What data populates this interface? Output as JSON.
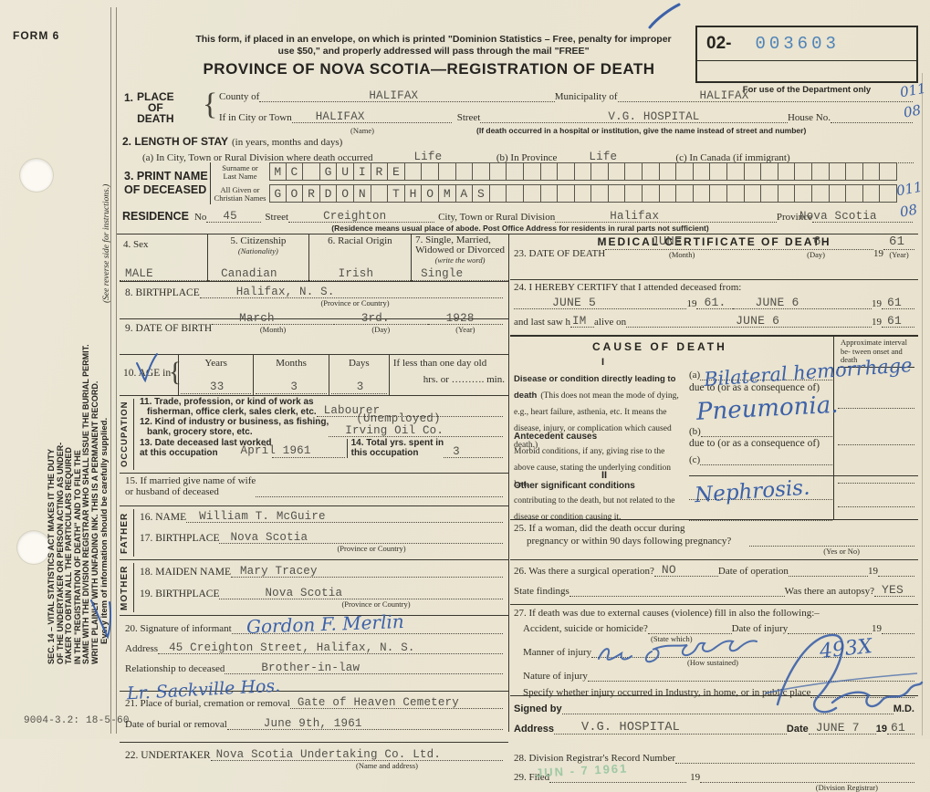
{
  "margin": {
    "form_no": "FORM 6",
    "notice_lines": [
      "SEC. 14 – VITAL STATISTICS ACT MAKES IT THE DUTY",
      "OF THE UNDERTAKER OR PERSON ACTING AS UNDER-",
      "TAKER TO OBTAIN ALL THE PARTICULARS REQUIRED",
      "IN THE \"REGISTRATION OF DEATH\" AND TO FILE THE",
      "SAME WITH THE DIVISION REGISTRAR WHO SHALL ISSUE THE BURIAL PERMIT.",
      "WRITE PLAINLY WITH UNFADING INK. THIS IS A PERMANENT RECORD."
    ],
    "supplied_note": "Every item of information should be carefully supplied.",
    "reverse_note": "(See reverse side for instructions.)",
    "print_code": "9004-3.2: 18-5-60"
  },
  "header": {
    "mail_note_1": "This form, if placed in an envelope, on which is printed \"Dominion Statistics – Free, penalty for improper",
    "mail_note_2": "use $50,\" and properly addressed will pass through the mail \"FREE\"",
    "title": "PROVINCE OF NOVA SCOTIA—REGISTRATION OF DEATH",
    "dept_code_prefix": "02-",
    "dept_code_number": "003603",
    "dept_caption": "For use of the Department only"
  },
  "place": {
    "num": "1.",
    "label_1": "PLACE",
    "label_2": "OF",
    "label_3": "DEATH",
    "county_label": "County of",
    "county_value": "HALIFAX",
    "municipality_label": "Municipality of",
    "municipality_value": "HALIFAX",
    "city_label": "If in City or Town",
    "city_value": "HALIFAX",
    "city_cap": "(Name)",
    "street_label": "Street",
    "street_value": "V.G. HOSPITAL",
    "house_label": "House No.",
    "hospital_note": "(If death occurred in a hospital or institution, give the name instead of street and number)",
    "margin_1": "011",
    "margin_2": "08"
  },
  "stay": {
    "num_label": "2. LENGTH OF STAY",
    "paren": "(in years, months and days)",
    "a_label": "(a) In City, Town or Rural Division where death occurred",
    "a_value": "Life",
    "b_label": "(b) In Province",
    "b_value": "Life",
    "c_label": "(c) In Canada (if immigrant)"
  },
  "name": {
    "num_label_1": "3. PRINT NAME",
    "num_label_2": "OF DECEASED",
    "surname_label_1": "Surname or",
    "surname_label_2": "Last Name",
    "given_label_1": "All Given or",
    "given_label_2": "Christian Names",
    "surname_value": "MC GUIRE",
    "given_value": "GORDON THOMAS",
    "residence_label": "RESIDENCE",
    "no_label": "No",
    "no_value": "45",
    "street_label": "Street",
    "street_value": "Creighton",
    "city_label": "City, Town or Rural Division",
    "city_value": "Halifax",
    "province_label": "Province",
    "province_value": "Nova Scotia",
    "residence_note": "(Residence means usual place of abode. Post Office Address for residents in rural parts not sufficient)",
    "margin_1": "011",
    "margin_2": "08"
  },
  "vitals": {
    "sex_label": "4. Sex",
    "sex_value": "MALE",
    "citizenship_label": "5. Citizenship",
    "citizenship_cap": "(Nationality)",
    "citizenship_value": "Canadian",
    "racial_label": "6. Racial Origin",
    "racial_value": "Irish",
    "status_label_1": "7. Single, Married,",
    "status_label_2": "Widowed or Divorced",
    "status_cap": "(write the word)",
    "status_value": "Single"
  },
  "birth": {
    "birthplace_label": "8. BIRTHPLACE",
    "birthplace_value": "Halifax, N. S.",
    "birthplace_cap": "(Province or Country)",
    "dob_label": "9. DATE OF BIRTH",
    "dob_month": "March",
    "dob_month_cap": "(Month)",
    "dob_day": "3rd.",
    "dob_day_cap": "(Day)",
    "dob_year": "1928",
    "dob_year_cap": "(Year)",
    "age_label": "10. AGE in",
    "age_years_label": "Years",
    "age_years": "33",
    "age_months_label": "Months",
    "age_months": "3",
    "age_days_label": "Days",
    "age_days": "3",
    "age_lt_label": "If less than one day old",
    "age_hrs_label": "hrs. or",
    "age_min_label": "min."
  },
  "occupation": {
    "side_label": "OCCUPATION",
    "trade_label_1": "11. Trade, profession, or kind of work as",
    "trade_label_2": "fisherman, office clerk, sales clerk, etc.",
    "trade_value": "Labourer",
    "industry_label_1": "12. Kind of industry or business, as fishing,",
    "industry_label_2": "bank, grocery store, etc.",
    "industry_extra": "(Unemployed)",
    "industry_value": "Irving Oil Co.",
    "last_worked_label_1": "13. Date deceased last worked",
    "last_worked_label_2": "at this occupation",
    "last_worked_value": "April 1961",
    "total_label_1": "14. Total yrs. spent in",
    "total_label_2": "this occupation",
    "total_value": "3",
    "spouse_label_1": "15. If married give name of wife",
    "spouse_label_2": "or husband of deceased"
  },
  "father": {
    "side_label": "FATHER",
    "name_label": "16. NAME",
    "name_value": "William T. McGuire",
    "birthplace_label": "17. BIRTHPLACE",
    "birthplace_value": "Nova Scotia",
    "birthplace_cap": "(Province or Country)"
  },
  "mother": {
    "side_label": "MOTHER",
    "maiden_label": "18. MAIDEN NAME",
    "maiden_value": "Mary Tracey",
    "birthplace_label": "19. BIRTHPLACE",
    "birthplace_value": "Nova Scotia",
    "birthplace_cap": "(Province or Country)"
  },
  "informant": {
    "sig_label": "20. Signature of informant",
    "sig_value": "Gordon F. Merlin",
    "address_label": "Address",
    "address_value": "45 Creighton Street, Halifax, N. S.",
    "relationship_label": "Relationship to deceased",
    "relationship_value": "Brother-in-law",
    "hand_note": "Lr. Sackville Hos."
  },
  "burial": {
    "place_label": "21. Place of burial, cremation or removal",
    "place_value": "Gate of Heaven Cemetery",
    "date_label": "Date of burial or removal",
    "date_value": "June 9th, 1961",
    "undertaker_label": "22. UNDERTAKER",
    "undertaker_value": "Nova Scotia Undertaking Co. Ltd.",
    "undertaker_cap": "(Name and address)"
  },
  "medical": {
    "title": "MEDICAL CERTIFICATE OF DEATH",
    "dod_label": "23. DATE OF DEATH",
    "dod_month": "JUNE",
    "dod_month_cap": "(Month)",
    "dod_day": "6",
    "dod_day_cap": "(Day)",
    "dod_year_prefix": "19",
    "dod_year": "61",
    "dod_year_cap": "(Year)",
    "certify_label": "24. I HEREBY CERTIFY that I attended deceased from:",
    "from_value": "JUNE 5",
    "from_year_prefix": "19",
    "from_year": "61.",
    "to_value": "JUNE 6",
    "to_year_prefix": "19",
    "to_year": "61",
    "last_saw_1": "and last saw h",
    "last_saw_fill": "IM",
    "last_saw_2": "alive on",
    "last_saw_value": "JUNE 6",
    "last_saw_year_prefix": "19",
    "last_saw_year": "61"
  },
  "cause": {
    "title": "CAUSE OF DEATH",
    "interval_header": "Approximate interval be- tween onset and death",
    "part1": "I",
    "lead_bold": "Disease or condition directly lead­ing to death",
    "lead_paren": "(This does not mean the mode of dying, e.g., heart fail­ure, asthenia, etc. It means the disease, injury, or complication which caused death.)",
    "a_label": "(a)",
    "a_value": "Bilateral hemorrhage",
    "due_label_1": "due to (or as a consequence of)",
    "due_value_1": "Pneumonia.",
    "b_label": "(b)",
    "due_label_2": "due to (or as a consequence of)",
    "c_label": "(c)",
    "antecedent_bold": "Antecedent causes",
    "antecedent_text": "Morbid conditions, if any, giving rise to the above cause, stating the underlying condition last.",
    "part2": "II",
    "other_bold": "Other significant conditions",
    "other_text": "contributing to the death, but not related to the disease or condi­tion causing it.",
    "other_value": "Nephrosis."
  },
  "questions": {
    "q25_1": "25. If a woman, did the death occur during",
    "q25_2": "pregnancy or within 90 days following pregnancy?",
    "q25_cap": "(Yes or No)",
    "q26_label": "26. Was there a surgical operation?",
    "q26_value": "NO",
    "q26_date_label": "Date of operation",
    "q26_year": "19",
    "q26_findings_label": "State findings",
    "q26_autopsy_label": "Was there an autopsy?",
    "q26_autopsy_value": "YES",
    "q27_label": "27. If death was due to external causes (violence) fill in also the following:–",
    "q27_acc_label": "Accident, suicide or homicide?",
    "q27_acc_cap": "(State which)",
    "q27_injury_label": "Date of injury",
    "q27_year": "19",
    "q27_manner_label": "Manner of injury",
    "q27_manner_cap": "(How sustained)",
    "q27_manner_hand": "493X",
    "q27_nature_label": "Nature of injury",
    "q27_specify_label": "Specify whether injury occurred in Industry, in home, or in public place"
  },
  "signoff": {
    "signed_label": "Signed by",
    "md_label": "M.D.",
    "address_label": "Address",
    "address_value": "V.G. HOSPITAL",
    "date_label": "Date",
    "date_value": "JUNE 7",
    "year_prefix": "19",
    "year_value": "61",
    "record_label": "28. Division Registrar's Record Number",
    "filed_label": "29. Filed",
    "filed_year": "19",
    "registrar_cap": "(Division Registrar)",
    "stamp": "JUN - 7 1961"
  },
  "colors": {
    "handwriting_blue": "#3c61a9",
    "stamp_blue": "#4f83b8",
    "stamp_green": "#93c49b",
    "paper": "#eae5d3"
  }
}
